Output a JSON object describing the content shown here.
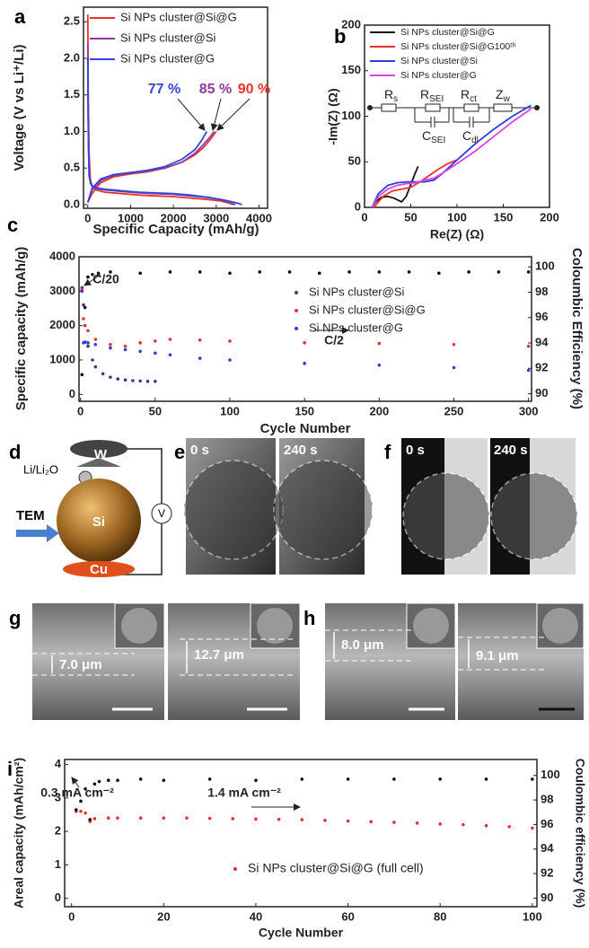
{
  "chart_data": [
    {
      "type": "line",
      "panel": "a",
      "xlabel": "Specific Capacity (mAh/g)",
      "ylabel": "Voltage (V vs Li⁺/Li)",
      "xlim": [
        -100,
        4200
      ],
      "xticks": [
        0,
        1000,
        2000,
        3000,
        4000
      ],
      "ylim": [
        -0.05,
        2.7
      ],
      "yticks": [
        {
          "value": 0,
          "label": "0.0"
        },
        {
          "value": 0.5,
          "label": "0.5"
        },
        {
          "value": 1,
          "label": "1.0"
        },
        {
          "value": 1.5,
          "label": "1.5"
        },
        {
          "value": 2,
          "label": "2.0"
        },
        {
          "value": 2.5,
          "label": "2.5"
        }
      ],
      "series": [
        {
          "name": "Si NPs cluster@Si@G",
          "color": "#e8322f",
          "x": [
            0,
            10,
            30,
            60,
            100,
            200,
            400,
            800,
            1200,
            1600,
            2000,
            2400,
            2800,
            3100,
            3300,
            3400,
            null,
            0,
            100,
            300,
            600,
            1000,
            1400,
            1800,
            2200,
            2500,
            2700,
            2850,
            3000
          ],
          "values": [
            2.6,
            1.6,
            0.7,
            0.35,
            0.25,
            0.2,
            0.17,
            0.15,
            0.13,
            0.12,
            0.11,
            0.09,
            0.07,
            0.05,
            0.02,
            0,
            null,
            0.03,
            0.15,
            0.3,
            0.38,
            0.42,
            0.45,
            0.5,
            0.58,
            0.68,
            0.78,
            0.88,
            1.0
          ]
        },
        {
          "name": "Si NPs cluster@Si",
          "color": "#8e3a9e",
          "x": [
            0,
            10,
            30,
            60,
            100,
            200,
            400,
            800,
            1200,
            1600,
            2000,
            2400,
            2800,
            3100,
            3300,
            3450,
            null,
            0,
            100,
            300,
            600,
            1000,
            1400,
            1800,
            2200,
            2500,
            2700,
            2850,
            2950
          ],
          "values": [
            2.2,
            1.2,
            0.5,
            0.3,
            0.25,
            0.22,
            0.2,
            0.18,
            0.16,
            0.15,
            0.14,
            0.12,
            0.1,
            0.07,
            0.03,
            0,
            null,
            0.03,
            0.2,
            0.33,
            0.4,
            0.43,
            0.46,
            0.5,
            0.58,
            0.7,
            0.82,
            0.92,
            1.0
          ]
        },
        {
          "name": "Si NPs cluster@G",
          "color": "#3447d6",
          "x": [
            0,
            5,
            15,
            30,
            60,
            100,
            200,
            400,
            800,
            1200,
            1600,
            2000,
            2400,
            2800,
            3200,
            3500,
            3600,
            null,
            0,
            100,
            300,
            600,
            1000,
            1400,
            1800,
            2200,
            2500,
            2650,
            2780
          ],
          "values": [
            2.0,
            1.5,
            0.8,
            0.4,
            0.3,
            0.26,
            0.23,
            0.21,
            0.19,
            0.17,
            0.16,
            0.15,
            0.13,
            0.1,
            0.06,
            0.02,
            0,
            null,
            0.03,
            0.22,
            0.35,
            0.41,
            0.44,
            0.47,
            0.52,
            0.62,
            0.75,
            0.87,
            1.0
          ]
        }
      ],
      "annotations": [
        {
          "text": "77 %",
          "color": "#3447d6"
        },
        {
          "text": "85 %",
          "color": "#8e3a9e"
        },
        {
          "text": "90 %",
          "color": "#e8322f"
        }
      ]
    },
    {
      "type": "line",
      "panel": "b",
      "xlabel": "Re(Z) (Ω)",
      "ylabel": "-Im(Z) (Ω)",
      "xlim": [
        0,
        200
      ],
      "xticks": [
        0,
        50,
        100,
        150,
        200
      ],
      "ylim": [
        0,
        200
      ],
      "yticks": [
        0,
        50,
        100,
        150,
        200
      ],
      "series": [
        {
          "name": "Si NPs cluster@Si@G",
          "color": "#111111",
          "x": [
            8,
            12,
            18,
            25,
            32,
            40,
            45,
            50,
            55,
            58
          ],
          "values": [
            0,
            6,
            11,
            12,
            10,
            6,
            12,
            25,
            38,
            45
          ]
        },
        {
          "name": "Si NPs cluster@Si@G100ᵗʰ",
          "color": "#e8322f",
          "x": [
            10,
            20,
            30,
            40,
            50,
            60,
            70,
            80,
            90,
            100
          ],
          "values": [
            0,
            12,
            18,
            20,
            22,
            28,
            35,
            42,
            48,
            52
          ]
        },
        {
          "name": "Si NPs cluster@Si",
          "color": "#2a3fe0",
          "x": [
            8,
            15,
            25,
            35,
            45,
            55,
            65,
            75,
            85,
            100,
            120,
            140,
            160,
            180
          ],
          "values": [
            0,
            15,
            24,
            27,
            28,
            28,
            28,
            30,
            38,
            52,
            70,
            86,
            100,
            112
          ]
        },
        {
          "name": "Si NPs cluster@G",
          "color": "#e040e0",
          "x": [
            8,
            15,
            25,
            35,
            45,
            55,
            65,
            75,
            85,
            100,
            120,
            140,
            160,
            180
          ],
          "values": [
            0,
            12,
            20,
            24,
            26,
            27,
            30,
            32,
            38,
            48,
            62,
            78,
            94,
            108
          ]
        }
      ],
      "circuit": [
        {
          "main": "R",
          "sub": "s"
        },
        {
          "main": "R",
          "sub": "SEI"
        },
        {
          "main": "C",
          "sub": "SEI"
        },
        {
          "main": "R",
          "sub": "ct"
        },
        {
          "main": "C",
          "sub": "dl"
        },
        {
          "main": "Z",
          "sub": "w"
        }
      ]
    },
    {
      "type": "scatter",
      "panel": "c",
      "xlabel": "Cycle Number",
      "ylabel": "Specific capacity (mAh/g)",
      "y2label": "Coloumbic Efficiency (%)",
      "xlim": [
        -1,
        302
      ],
      "xticks": [
        0,
        50,
        100,
        150,
        200,
        250,
        300
      ],
      "ylim": [
        -200,
        4000
      ],
      "yticks": [
        0,
        1000,
        2000,
        3000,
        4000
      ],
      "y2lim": [
        89.4,
        100.8
      ],
      "y2ticks": [
        90,
        92,
        94,
        96,
        98,
        100
      ],
      "series": [
        {
          "name": "Si NPs cluster@Si",
          "color": "#5b2c7a",
          "x": [
            1,
            2,
            3,
            5,
            8,
            10,
            15,
            20,
            25,
            30,
            35,
            40,
            45,
            50
          ],
          "values": [
            3100,
            2600,
            2000,
            1400,
            1000,
            800,
            600,
            500,
            450,
            420,
            400,
            390,
            380,
            380
          ]
        },
        {
          "name": "Si NPs cluster@Si@G",
          "color": "#e8322f",
          "x": [
            1,
            2,
            3,
            5,
            10,
            20,
            30,
            40,
            50,
            60,
            80,
            100,
            150,
            200,
            250,
            300
          ],
          "values": [
            3050,
            2200,
            2000,
            1850,
            1600,
            1450,
            1400,
            1500,
            1550,
            1600,
            1580,
            1550,
            1500,
            1480,
            1450,
            1400
          ]
        },
        {
          "name": "Si NPs cluster@G",
          "color": "#2a3fe0",
          "x": [
            1,
            2,
            3,
            5,
            10,
            20,
            30,
            40,
            50,
            60,
            80,
            100,
            150,
            200,
            250,
            300
          ],
          "values": [
            3000,
            1500,
            1520,
            1500,
            1450,
            1350,
            1300,
            1250,
            1200,
            1150,
            1050,
            1000,
            900,
            850,
            780,
            700
          ]
        },
        {
          "color": "#111111",
          "axis": "y2",
          "x": [
            1,
            3,
            5,
            8,
            12,
            20,
            40,
            60,
            80,
            100,
            120,
            140,
            160,
            180,
            200,
            220,
            240,
            260,
            280,
            300
          ],
          "values": [
            91.5,
            96.8,
            99.2,
            99.4,
            99.5,
            99.6,
            99.5,
            99.6,
            99.6,
            99.5,
            99.6,
            99.6,
            99.5,
            99.6,
            99.6,
            99.6,
            99.5,
            99.6,
            99.6,
            99.6
          ]
        }
      ],
      "annotations": [
        {
          "text": "C/20"
        },
        {
          "text": "C/2"
        }
      ]
    },
    {
      "type": "scatter",
      "panel": "i",
      "xlabel": "Cycle Number",
      "ylabel": "Areal capacity (mAh/cm²)",
      "y2label": "Coulombic efficiency (%)",
      "xlim": [
        -1.5,
        101
      ],
      "xticks": [
        0,
        20,
        40,
        60,
        80,
        100
      ],
      "ylim": [
        -0.25,
        4.15
      ],
      "yticks": [
        0,
        1,
        2,
        3,
        4
      ],
      "y2lim": [
        89.3,
        101.3
      ],
      "y2ticks": [
        90,
        92,
        94,
        96,
        98,
        100
      ],
      "series": [
        {
          "name": "Si NPs cluster@Si@G (full cell)",
          "color": "#e8322f",
          "x": [
            1,
            2,
            3,
            4,
            5,
            8,
            10,
            15,
            20,
            25,
            30,
            35,
            40,
            45,
            50,
            55,
            60,
            65,
            70,
            75,
            80,
            85,
            90,
            95,
            100
          ],
          "values": [
            2.6,
            2.6,
            2.55,
            2.3,
            2.38,
            2.4,
            2.4,
            2.4,
            2.4,
            2.4,
            2.39,
            2.38,
            2.37,
            2.36,
            2.35,
            2.33,
            2.31,
            2.29,
            2.27,
            2.25,
            2.22,
            2.2,
            2.17,
            2.14,
            2.1
          ]
        },
        {
          "color": "#111111",
          "axis": "y2",
          "x": [
            1,
            2,
            3,
            4,
            5,
            6,
            8,
            10,
            15,
            20,
            30,
            40,
            50,
            60,
            70,
            80,
            90,
            100
          ],
          "values": [
            97.2,
            97.9,
            98.9,
            96.4,
            99.3,
            99.5,
            99.6,
            99.6,
            99.7,
            99.6,
            99.7,
            99.6,
            99.7,
            99.7,
            99.7,
            99.7,
            99.7,
            99.7
          ]
        }
      ],
      "annotations": [
        {
          "text": "0.3 mA cm⁻²"
        },
        {
          "text": "1.4 mA cm⁻²"
        }
      ]
    }
  ],
  "figure_panels": [
    {
      "panel": "d",
      "labels": [
        "W",
        "Li/Li₂O",
        "TEM",
        "Si",
        "V",
        "Cu"
      ]
    },
    {
      "panel": "e",
      "labels": [
        "0 s",
        "240 s"
      ]
    },
    {
      "panel": "f",
      "labels": [
        "0 s",
        "240 s"
      ]
    },
    {
      "panel": "g",
      "labels": [
        "7.0 μm",
        "12.7 μm"
      ]
    },
    {
      "panel": "h",
      "labels": [
        "8.0 μm",
        "9.1 μm"
      ]
    }
  ]
}
